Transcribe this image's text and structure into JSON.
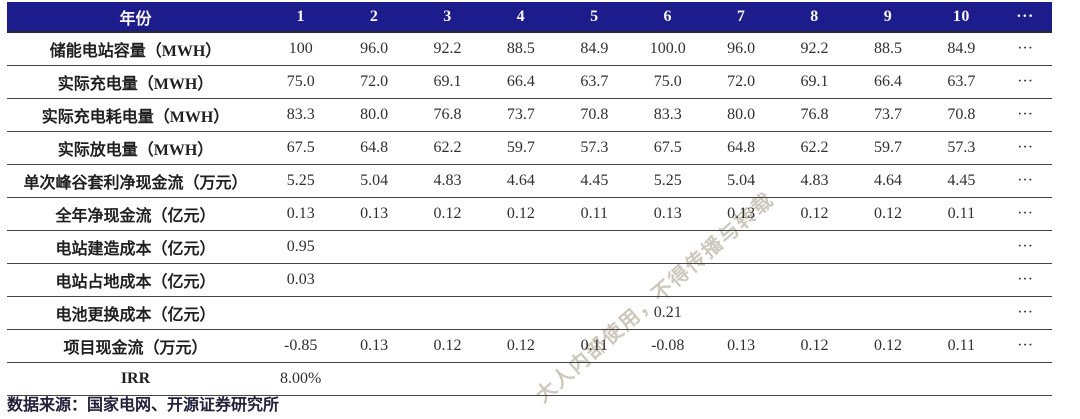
{
  "table": {
    "header": {
      "label": "年份",
      "cols": [
        "1",
        "2",
        "3",
        "4",
        "5",
        "6",
        "7",
        "8",
        "9",
        "10",
        "···"
      ]
    },
    "rows": [
      {
        "label": "储能电站容量（MWH）",
        "values": [
          "100",
          "96.0",
          "92.2",
          "88.5",
          "84.9",
          "100.0",
          "96.0",
          "92.2",
          "88.5",
          "84.9",
          "···"
        ]
      },
      {
        "label": "实际充电量（MWH）",
        "values": [
          "75.0",
          "72.0",
          "69.1",
          "66.4",
          "63.7",
          "75.0",
          "72.0",
          "69.1",
          "66.4",
          "63.7",
          "···"
        ]
      },
      {
        "label": "实际充电耗电量（MWH）",
        "values": [
          "83.3",
          "80.0",
          "76.8",
          "73.7",
          "70.8",
          "83.3",
          "80.0",
          "76.8",
          "73.7",
          "70.8",
          "···"
        ]
      },
      {
        "label": "实际放电量（MWH）",
        "values": [
          "67.5",
          "64.8",
          "62.2",
          "59.7",
          "57.3",
          "67.5",
          "64.8",
          "62.2",
          "59.7",
          "57.3",
          "···"
        ]
      },
      {
        "label": "单次峰谷套利净现金流（万元）",
        "values": [
          "5.25",
          "5.04",
          "4.83",
          "4.64",
          "4.45",
          "5.25",
          "5.04",
          "4.83",
          "4.64",
          "4.45",
          "···"
        ]
      },
      {
        "label": "全年净现金流（亿元）",
        "values": [
          "0.13",
          "0.13",
          "0.12",
          "0.12",
          "0.11",
          "0.13",
          "0.13",
          "0.12",
          "0.12",
          "0.11",
          "···"
        ]
      },
      {
        "label": "电站建造成本（亿元）",
        "values": [
          "0.95",
          "",
          "",
          "",
          "",
          "",
          "",
          "",
          "",
          "",
          "···"
        ]
      },
      {
        "label": "电站占地成本（亿元）",
        "values": [
          "0.03",
          "",
          "",
          "",
          "",
          "",
          "",
          "",
          "",
          "",
          "···"
        ]
      },
      {
        "label": "电池更换成本（亿元）",
        "values": [
          "",
          "",
          "",
          "",
          "",
          "0.21",
          "",
          "",
          "",
          "",
          "···"
        ]
      },
      {
        "label": "项目现金流（万元）",
        "values": [
          "-0.85",
          "0.13",
          "0.12",
          "0.12",
          "0.11",
          "-0.08",
          "0.13",
          "0.12",
          "0.12",
          "0.11",
          "···"
        ]
      },
      {
        "label": "IRR",
        "values": [
          "8.00%",
          "",
          "",
          "",
          "",
          "",
          "",
          "",
          "",
          "",
          ""
        ]
      }
    ],
    "source": "数据来源：国家电网、开源证券研究所"
  },
  "watermark": {
    "text": "大人内部使用，不得传播与转载"
  },
  "colors": {
    "header_bg": "#1c1c8c",
    "header_text": "#f8f6ee",
    "row_line": "#454545",
    "body_text": "#303030",
    "watermark_text": "#ada291"
  }
}
